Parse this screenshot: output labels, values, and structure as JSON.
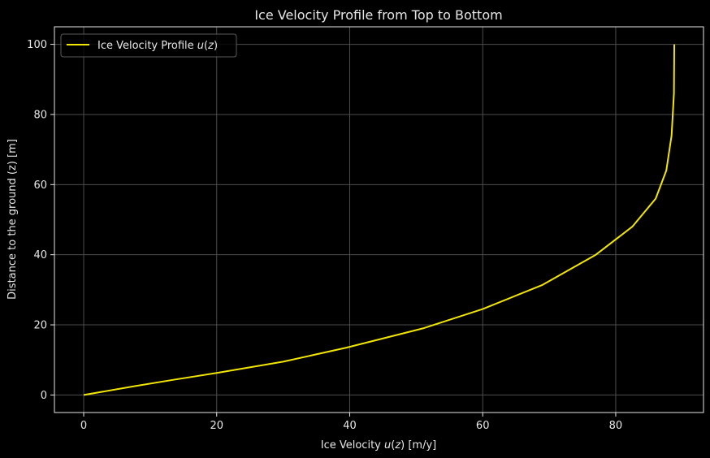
{
  "chart_data": {
    "type": "line",
    "title": "Ice Velocity Profile from Top to Bottom",
    "xlabel": "Ice Velocity u(z) [m/y]",
    "ylabel": "Distance to the ground (z) [m]",
    "xlim": [
      -4.4,
      93.2
    ],
    "ylim": [
      -5,
      105
    ],
    "xticks": [
      0,
      20,
      40,
      60,
      80
    ],
    "yticks": [
      0,
      20,
      40,
      60,
      80,
      100
    ],
    "grid": true,
    "legend_position": "top-left",
    "series": [
      {
        "name": "Ice Velocity Profile u(z)",
        "color": "#f2e600",
        "x": [
          0,
          7.6,
          13.4,
          20.0,
          30.0,
          39.5,
          51.0,
          60.0,
          69.0,
          77.0,
          82.5,
          86.0,
          87.6,
          88.4,
          88.75,
          88.8
        ],
        "y": [
          0,
          2.5,
          4.3,
          6.3,
          9.5,
          13.5,
          19.0,
          24.5,
          31.4,
          40.0,
          48.0,
          56.0,
          64.0,
          74.0,
          86.0,
          100
        ]
      }
    ]
  }
}
